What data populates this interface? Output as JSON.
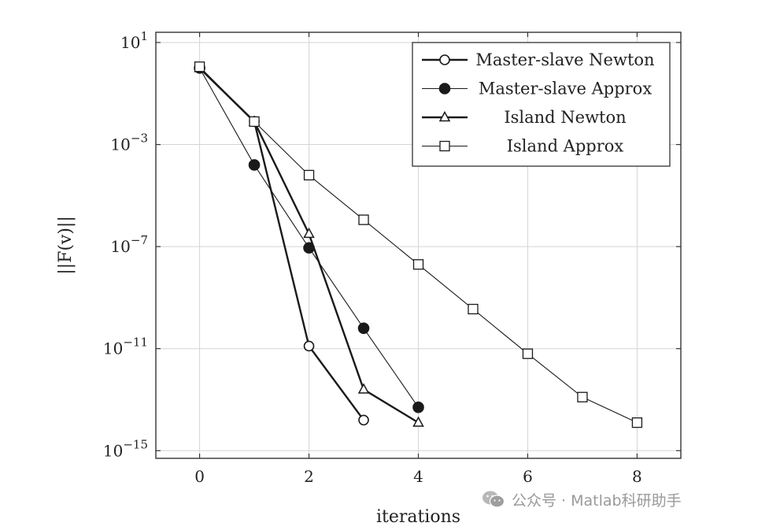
{
  "chart_data": {
    "type": "line",
    "xlabel": "iterations",
    "ylabel": "||F(v)||",
    "xlim": [
      -0.8,
      8.8
    ],
    "ylim_log10": [
      -15.3,
      1.4
    ],
    "yscale": "log",
    "grid": true,
    "legend_position": "top-right",
    "x_ticks": [
      0,
      2,
      4,
      6,
      8
    ],
    "y_ticks": [
      {
        "exp": 1,
        "base": "10",
        "power": "1"
      },
      {
        "exp": -3,
        "base": "10",
        "power": "−3"
      },
      {
        "exp": -7,
        "base": "10",
        "power": "−7"
      },
      {
        "exp": -11,
        "base": "10",
        "power": "−11"
      },
      {
        "exp": -15,
        "base": "10",
        "power": "−15"
      }
    ],
    "series": [
      {
        "name": "Master-slave Newton",
        "marker": "circle-open",
        "line": "thick",
        "x": [
          0,
          1,
          2,
          3
        ],
        "log10_y": [
          0.0,
          -2.1,
          -10.9,
          -13.8
        ]
      },
      {
        "name": "Master-slave Approx",
        "marker": "circle-filled",
        "line": "thin",
        "x": [
          0,
          1,
          2,
          3,
          4
        ],
        "log10_y": [
          0.0,
          -3.8,
          -7.05,
          -10.2,
          -13.3
        ]
      },
      {
        "name": "Island Newton",
        "marker": "triangle-open",
        "line": "thick",
        "x": [
          0,
          1,
          2,
          3,
          4
        ],
        "log10_y": [
          0.0,
          -2.1,
          -6.5,
          -12.6,
          -13.9
        ]
      },
      {
        "name": "Island Approx",
        "marker": "square-open",
        "line": "thin",
        "x": [
          0,
          1,
          2,
          3,
          4,
          5,
          6,
          7,
          8
        ],
        "log10_y": [
          0.05,
          -2.1,
          -4.2,
          -5.95,
          -7.7,
          -9.45,
          -11.2,
          -12.9,
          -13.9
        ]
      }
    ]
  },
  "watermark": {
    "text": "公众号 · Matlab科研助手",
    "icon": "wechat-icon"
  }
}
